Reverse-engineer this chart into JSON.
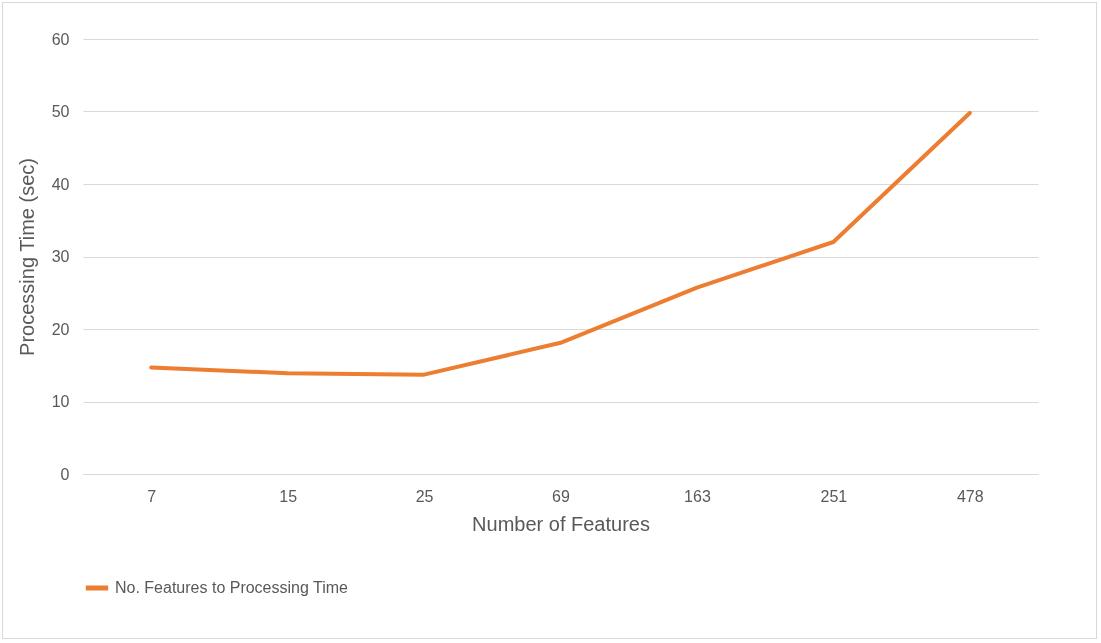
{
  "chart_data": {
    "type": "line",
    "xlabel": "Number of Features",
    "ylabel": "Processing Time (sec)",
    "categories": [
      "7",
      "15",
      "25",
      "69",
      "163",
      "251",
      "478"
    ],
    "series": [
      {
        "name": "No. Features to Processing Time",
        "color": "#ed7d31",
        "values": [
          14.7,
          13.9,
          13.7,
          18.1,
          25.7,
          32.0,
          49.8
        ]
      }
    ],
    "ylim": [
      0,
      60
    ],
    "yticks": [
      0,
      10,
      20,
      30,
      40,
      50,
      60
    ],
    "grid": "y",
    "legend": "bottom",
    "marker": "none",
    "line_style": "solid"
  }
}
